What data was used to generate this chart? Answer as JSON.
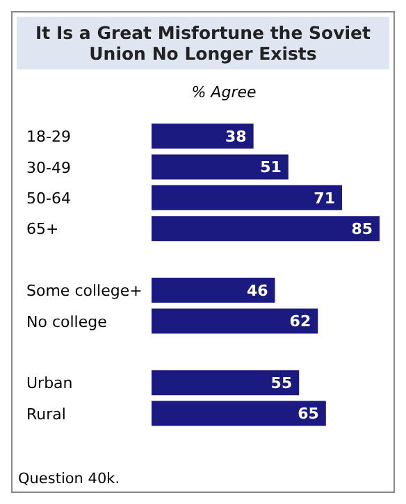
{
  "chart_data": {
    "type": "bar",
    "orientation": "horizontal",
    "title": "It Is a Great Misfortune the Soviet Union No Longer Exists",
    "subtitle": "% Agree",
    "categories": [
      "18-29",
      "30-49",
      "50-64",
      "65+",
      null,
      "Some college+",
      "No college",
      null,
      "Urban",
      "Rural"
    ],
    "values": [
      38,
      51,
      71,
      85,
      null,
      46,
      62,
      null,
      55,
      65
    ],
    "color": "#1a1a80",
    "data_labels": true,
    "grid": false,
    "legend": false,
    "annotations": [
      "Question 40k."
    ]
  }
}
